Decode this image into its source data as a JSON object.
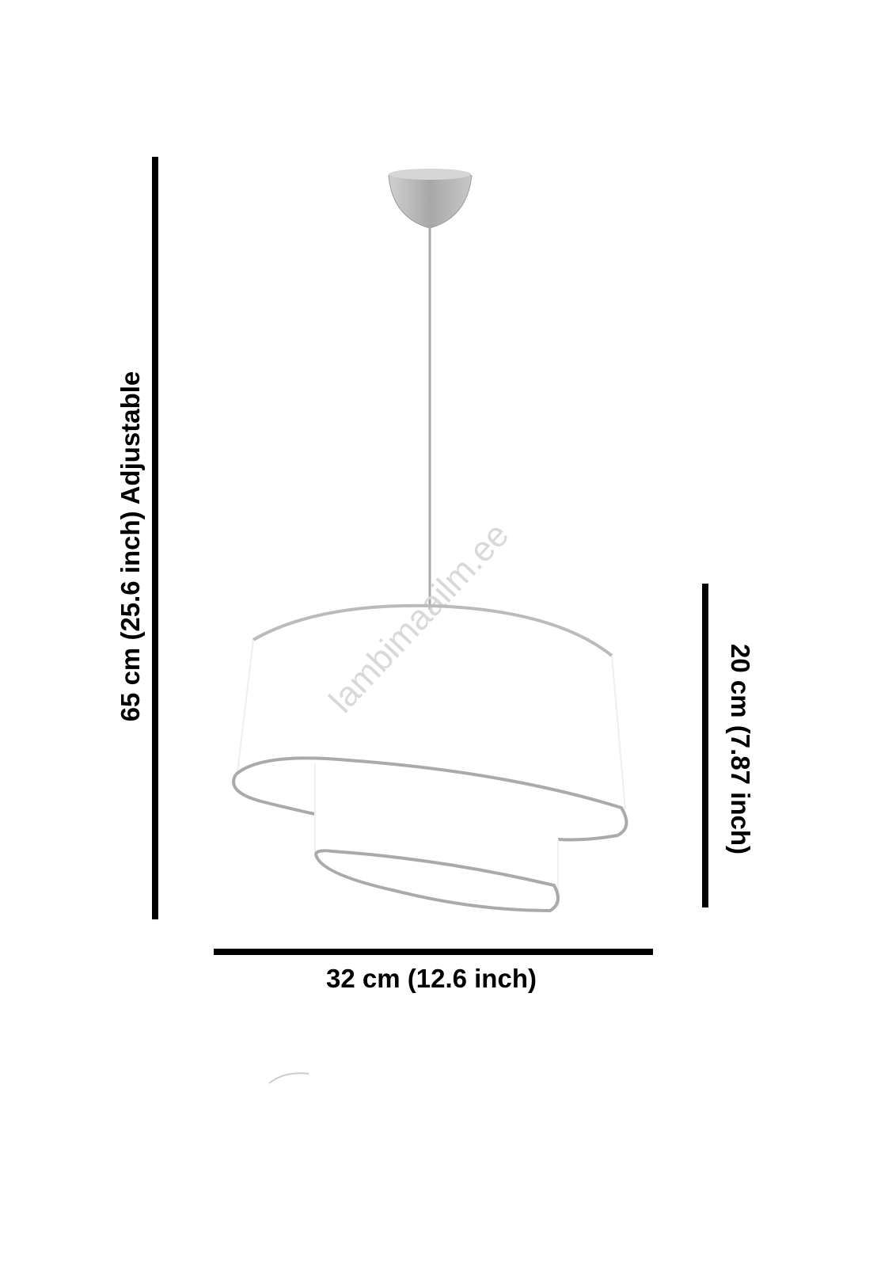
{
  "dimensions": {
    "height_label": "65 cm (25.6 inch) Adjustable",
    "shade_height_label": "20 cm (7.87 inch)",
    "width_label": "32 cm (12.6 inch)"
  },
  "watermark": "lambimaailm.ee",
  "colors": {
    "dimension_lines": "#000000",
    "metal": "#b8b8b8",
    "shade": "#ffffff"
  }
}
